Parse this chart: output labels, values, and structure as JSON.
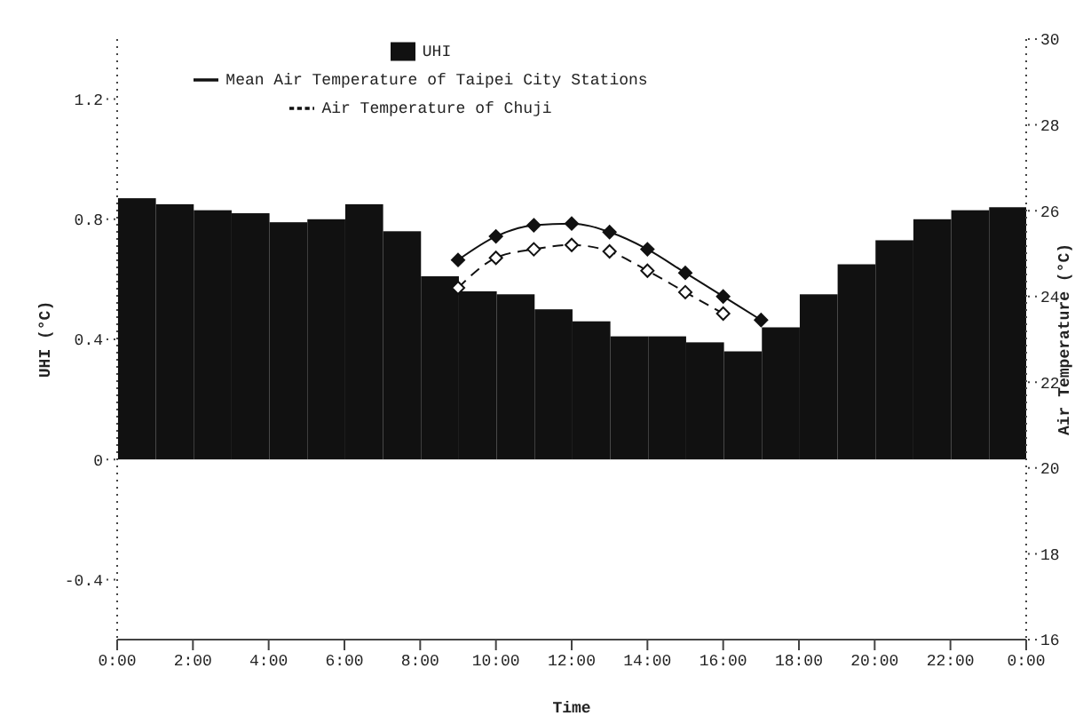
{
  "chart_data": {
    "type": "bar",
    "xlabel": "Time",
    "ylabel": "UHI (°C)",
    "y2label": "Air Temperature (°C)",
    "xlim": [
      0,
      24
    ],
    "xticks": [
      {
        "value": 0,
        "label": "0:00"
      },
      {
        "value": 2,
        "label": "2:00"
      },
      {
        "value": 4,
        "label": "4:00"
      },
      {
        "value": 6,
        "label": "6:00"
      },
      {
        "value": 8,
        "label": "8:00"
      },
      {
        "value": 10,
        "label": "10:00"
      },
      {
        "value": 12,
        "label": "12:00"
      },
      {
        "value": 14,
        "label": "14:00"
      },
      {
        "value": 16,
        "label": "16:00"
      },
      {
        "value": 18,
        "label": "18:00"
      },
      {
        "value": 20,
        "label": "20:00"
      },
      {
        "value": 22,
        "label": "22:00"
      },
      {
        "value": 24,
        "label": "0:00"
      }
    ],
    "ylim": [
      -0.6,
      1.4
    ],
    "yticks": [
      -0.4,
      0,
      0.4,
      0.8,
      1.2
    ],
    "y2lim": [
      16,
      30
    ],
    "y2ticks": [
      16,
      18,
      20,
      22,
      24,
      26,
      28,
      30
    ],
    "legend": "top left",
    "grid": false,
    "series": [
      {
        "name": "UHI",
        "color": "#111111",
        "x": [
          0.5,
          1.5,
          2.5,
          3.5,
          4.5,
          5.5,
          6.5,
          7.5,
          8.5,
          9.5,
          10.5,
          11.5,
          12.5,
          13.5,
          14.5,
          15.5,
          16.5,
          17.5,
          18.5,
          19.5,
          20.5,
          21.5,
          22.5,
          23.5
        ],
        "values": [
          0.87,
          0.85,
          0.83,
          0.82,
          0.79,
          0.8,
          0.85,
          0.76,
          0.61,
          0.56,
          0.55,
          0.5,
          0.46,
          0.41,
          0.41,
          0.39,
          0.36,
          0.44,
          0.55,
          0.65,
          0.73,
          0.8,
          0.83,
          0.84
        ]
      },
      {
        "name": "Mean Air Temperature of Taipei City Stations",
        "type": "line",
        "axis": "y2",
        "color": "#111111",
        "marker": "diamond",
        "line_style": "solid",
        "x": [
          9,
          10,
          11,
          12,
          13,
          14,
          15,
          16,
          17
        ],
        "values": [
          24.85,
          25.4,
          25.66,
          25.7,
          25.5,
          25.1,
          24.55,
          24.0,
          23.45
        ]
      },
      {
        "name": "Air Temperature of Chuji",
        "type": "line",
        "axis": "y2",
        "color": "#111111",
        "marker": "diamond",
        "line_style": "dashed",
        "x": [
          9,
          10,
          11,
          12,
          13,
          14,
          15,
          16
        ],
        "values": [
          24.2,
          24.9,
          25.1,
          25.2,
          25.05,
          24.6,
          24.1,
          23.6
        ]
      }
    ]
  }
}
